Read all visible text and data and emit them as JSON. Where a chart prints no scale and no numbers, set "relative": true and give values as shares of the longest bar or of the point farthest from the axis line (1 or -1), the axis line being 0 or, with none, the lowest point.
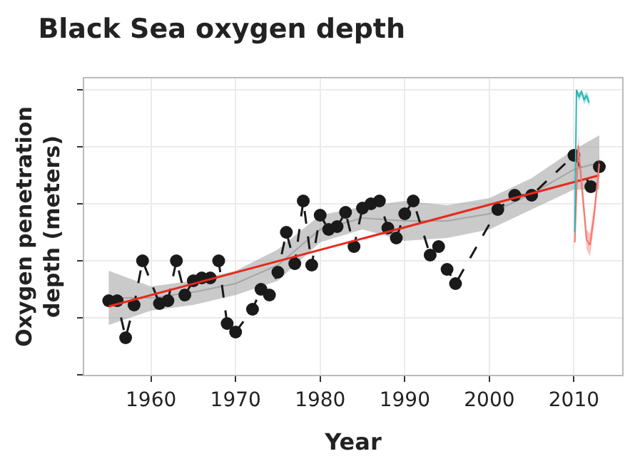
{
  "chart_data": {
    "type": "line",
    "title": "Black Sea oxygen depth",
    "xlabel": "Year",
    "ylabel": "Oxygen penetration depth (meters)",
    "relative": true,
    "xlim": [
      1952.1,
      2015.7
    ],
    "xticks": [
      1960,
      1970,
      1980,
      1990,
      2000,
      2010
    ],
    "grid": true,
    "series": [
      {
        "color": "#a6a6a6",
        "x": [
          1955,
          1960,
          1965,
          1970,
          1975,
          1980,
          1985,
          1990,
          1995,
          2000,
          2005,
          2010,
          2013
        ],
        "values": [
          0.27,
          0.27,
          0.29,
          0.32,
          0.385,
          0.51,
          0.55,
          0.54,
          0.54,
          0.565,
          0.635,
          0.72,
          0.745
        ],
        "lower": [
          0.175,
          0.225,
          0.245,
          0.28,
          0.33,
          0.465,
          0.51,
          0.47,
          0.48,
          0.51,
          0.58,
          0.65,
          0.65
        ],
        "upper": [
          0.365,
          0.31,
          0.33,
          0.365,
          0.44,
          0.56,
          0.59,
          0.61,
          0.595,
          0.62,
          0.69,
          0.79,
          0.84
        ]
      },
      {
        "color": "#1a1a1a",
        "marker": "circle",
        "line_style": "dashed",
        "x": [
          1955,
          1956,
          1957,
          1958,
          1959,
          1961,
          1962,
          1963,
          1964,
          1965,
          1966,
          1967,
          1968,
          1969,
          1970,
          1972,
          1973,
          1974,
          1975,
          1976,
          1977,
          1978,
          1979,
          1980,
          1981,
          1982,
          1983,
          1984,
          1985,
          1986,
          1987,
          1988,
          1989,
          1990,
          1991,
          1993,
          1994,
          1995,
          1996,
          2001,
          2003,
          2005,
          2010,
          2012,
          2013
        ],
        "values": [
          0.26,
          0.26,
          0.13,
          0.245,
          0.4,
          0.25,
          0.26,
          0.4,
          0.28,
          0.33,
          0.34,
          0.34,
          0.4,
          0.18,
          0.15,
          0.23,
          0.3,
          0.28,
          0.36,
          0.5,
          0.39,
          0.61,
          0.385,
          0.56,
          0.51,
          0.52,
          0.57,
          0.45,
          0.585,
          0.6,
          0.61,
          0.515,
          0.48,
          0.565,
          0.61,
          0.42,
          0.45,
          0.37,
          0.32,
          0.58,
          0.63,
          0.63,
          0.77,
          0.66,
          0.73
        ]
      },
      {
        "color": "#e8291c",
        "line_style": "solid",
        "x": [
          1955,
          2013
        ],
        "values": [
          0.24,
          0.7
        ]
      },
      {
        "color": "#f8766d",
        "line_style": "solid",
        "x": [
          2010.1,
          2010.5,
          2011.0,
          2011.5,
          2011.9,
          2012.4,
          2013.0
        ],
        "values": [
          0.465,
          0.805,
          0.64,
          0.475,
          0.455,
          0.565,
          0.74
        ],
        "lower": [
          0.43,
          0.77,
          0.6,
          0.44,
          0.415,
          0.53,
          0.7
        ],
        "upper": [
          0.5,
          0.84,
          0.68,
          0.51,
          0.495,
          0.6,
          0.78
        ]
      },
      {
        "color": "#2bb5b5",
        "line_style": "solid",
        "x": [
          2010.1,
          2010.3,
          2010.6,
          2010.9,
          2011.2,
          2011.5,
          2011.8
        ],
        "values": [
          0.5,
          1.0,
          0.975,
          0.995,
          0.965,
          0.98,
          0.955
        ],
        "lower": [
          0.485,
          0.985,
          0.96,
          0.98,
          0.95,
          0.965,
          0.94
        ],
        "upper": [
          0.515,
          1.0,
          0.99,
          1.0,
          0.98,
          0.995,
          0.97
        ]
      }
    ]
  }
}
